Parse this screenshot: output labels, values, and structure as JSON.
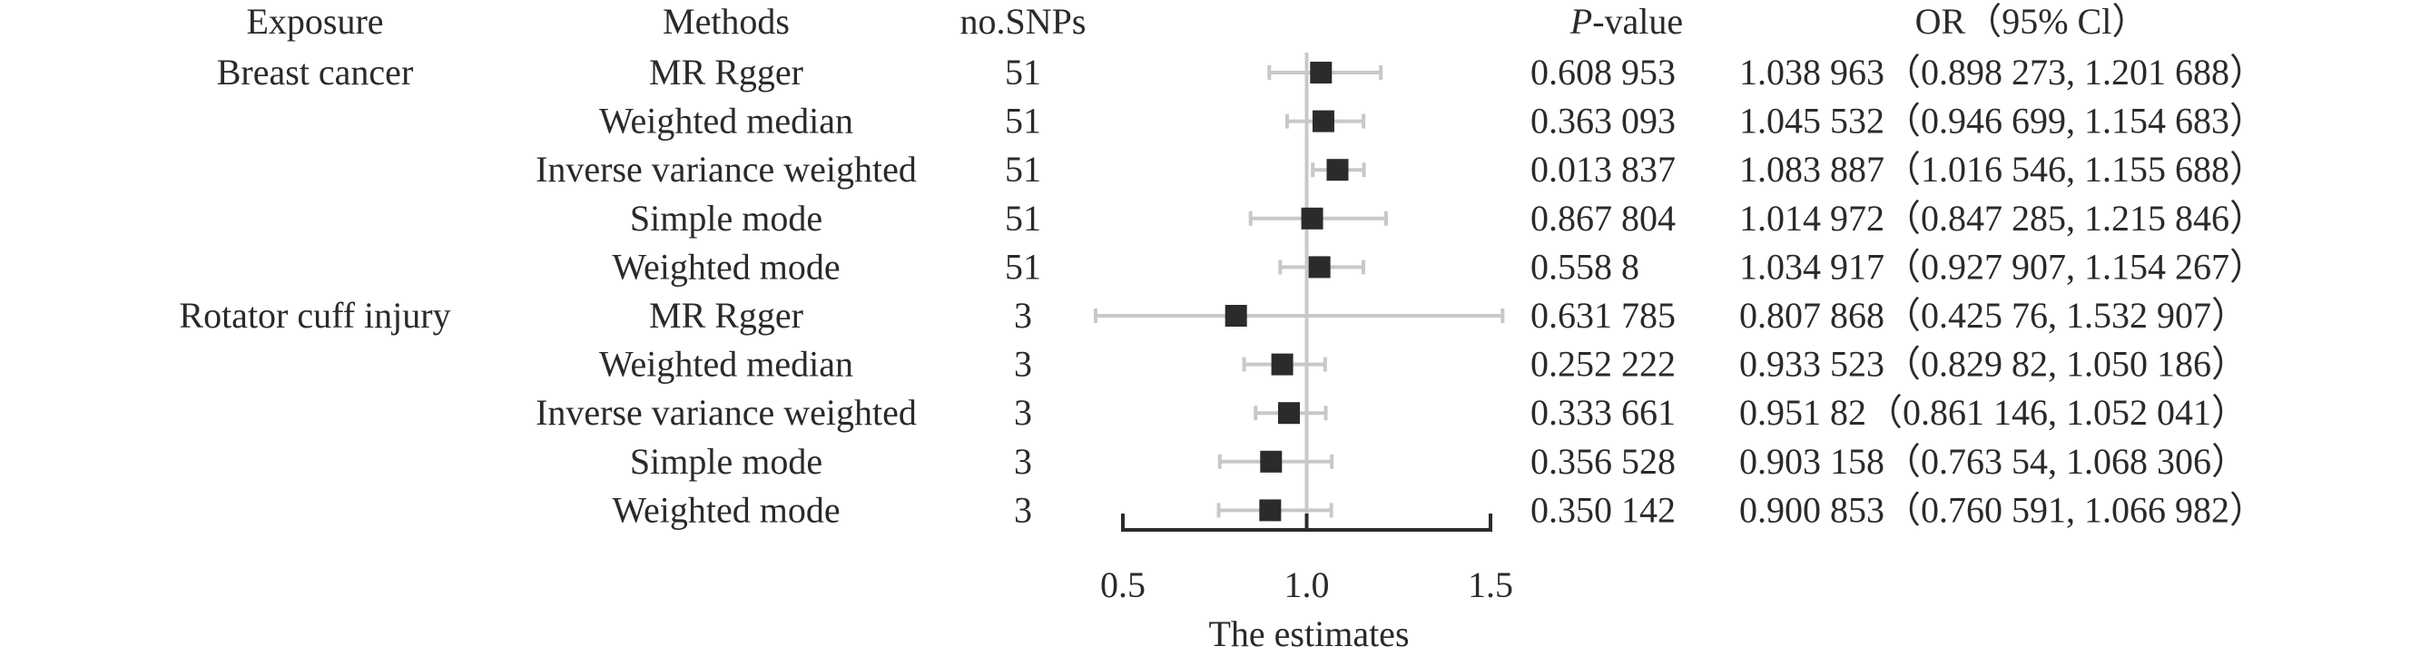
{
  "chart_data": {
    "type": "forest",
    "headers": {
      "exposure": "Exposure",
      "methods": "Methods",
      "nsnps": "no.SNPs",
      "pvalue_italic": "P",
      "pvalue_rest": "-value",
      "or": "OR（95% Cl）"
    },
    "xlabel": "The estimates",
    "xlim": [
      0.5,
      1.5
    ],
    "reference_line": 1.0,
    "ticks": [
      0.5,
      1.0,
      1.5
    ],
    "tick_labels": [
      "0.5",
      "1.0",
      "1.5"
    ],
    "rows": [
      {
        "exposure": "Breast cancer",
        "method": "MR Rgger",
        "nsnps": "51",
        "pvalue": "0.608 953",
        "or_text": "1.038 963（0.898 273, 1.201 688）",
        "or": 1.038963,
        "lower": 0.898273,
        "upper": 1.201688
      },
      {
        "exposure": "",
        "method": "Weighted median",
        "nsnps": "51",
        "pvalue": "0.363 093",
        "or_text": "1.045 532（0.946 699, 1.154 683）",
        "or": 1.045532,
        "lower": 0.946699,
        "upper": 1.154683
      },
      {
        "exposure": "",
        "method": "Inverse variance weighted",
        "nsnps": "51",
        "pvalue": "0.013 837",
        "or_text": "1.083 887（1.016 546, 1.155 688）",
        "or": 1.083887,
        "lower": 1.016546,
        "upper": 1.155688
      },
      {
        "exposure": "",
        "method": "Simple mode",
        "nsnps": "51",
        "pvalue": "0.867 804",
        "or_text": "1.014 972（0.847 285, 1.215 846）",
        "or": 1.014972,
        "lower": 0.847285,
        "upper": 1.215846
      },
      {
        "exposure": "",
        "method": "Weighted mode",
        "nsnps": "51",
        "pvalue": "0.558 8",
        "or_text": "1.034 917（0.927 907, 1.154 267）",
        "or": 1.034917,
        "lower": 0.927907,
        "upper": 1.154267
      },
      {
        "exposure": "Rotator cuff injury",
        "method": "MR Rgger",
        "nsnps": "3",
        "pvalue": "0.631 785",
        "or_text": "0.807 868（0.425 76, 1.532 907）",
        "or": 0.807868,
        "lower": 0.42576,
        "upper": 1.532907
      },
      {
        "exposure": "",
        "method": "Weighted median",
        "nsnps": "3",
        "pvalue": "0.252 222",
        "or_text": "0.933 523（0.829 82, 1.050 186）",
        "or": 0.933523,
        "lower": 0.82982,
        "upper": 1.050186
      },
      {
        "exposure": "",
        "method": "Inverse variance weighted",
        "nsnps": "3",
        "pvalue": "0.333 661",
        "or_text": "0.951 82（0.861 146, 1.052 041）",
        "or": 0.95182,
        "lower": 0.861146,
        "upper": 1.052041
      },
      {
        "exposure": "",
        "method": "Simple mode",
        "nsnps": "3",
        "pvalue": "0.356 528",
        "or_text": "0.903 158（0.763 54, 1.068 306）",
        "or": 0.903158,
        "lower": 0.76354,
        "upper": 1.068306
      },
      {
        "exposure": "",
        "method": "Weighted mode",
        "nsnps": "3",
        "pvalue": "0.350 142",
        "or_text": "0.900 853（0.760 591, 1.066 982）",
        "or": 0.900853,
        "lower": 0.760591,
        "upper": 1.066982
      }
    ],
    "colors": {
      "marker": "#2b2b2b",
      "ci_line": "#c8c8c8",
      "reference_line": "#c8c8c8",
      "axis": "#2b2b2b",
      "text": "#2a2a2a"
    }
  }
}
